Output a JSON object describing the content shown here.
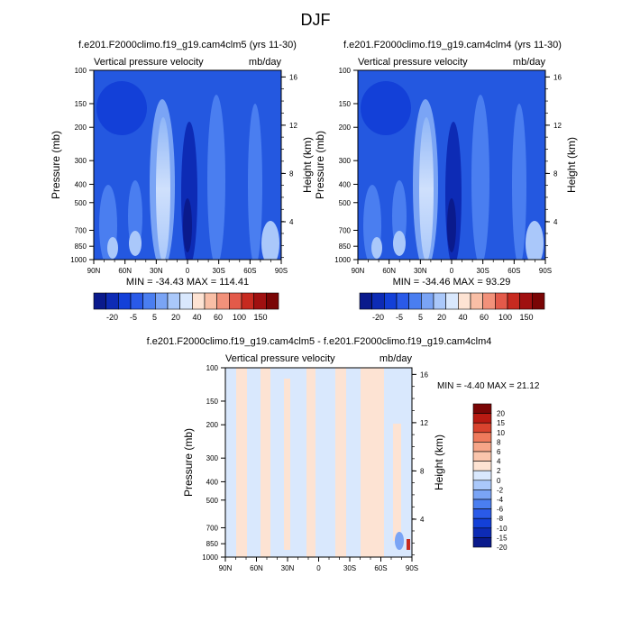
{
  "page_title": "DJF",
  "chart_data": [
    {
      "type": "heatmap",
      "title": "f.e201.F2000climo.f19_g19.cam4clm5 (yrs 11-30)",
      "left_string": "Vertical pressure velocity",
      "right_string": "mb/day",
      "ylabel": "Pressure (mb)",
      "ylabel_right": "Height (km)",
      "xticks": [
        "90N",
        "60N",
        "30N",
        "0",
        "30S",
        "60S",
        "90S"
      ],
      "yticks": [
        "100",
        "150",
        "200",
        "300",
        "400",
        "500",
        "700",
        "850",
        "1000"
      ],
      "yticks_right": [
        "16",
        "12",
        "8",
        "4"
      ],
      "stats": "MIN = -34.43  MAX = 114.41",
      "colorbar_labels": [
        "-20",
        "-5",
        "5",
        "20",
        "40",
        "60",
        "100",
        "150"
      ]
    },
    {
      "type": "heatmap",
      "title": "f.e201.F2000climo.f19_g19.cam4clm4 (yrs 11-30)",
      "left_string": "Vertical pressure velocity",
      "right_string": "mb/day",
      "ylabel": "Pressure (mb)",
      "ylabel_right": "Height (km)",
      "xticks": [
        "90N",
        "60N",
        "30N",
        "0",
        "30S",
        "60S",
        "90S"
      ],
      "yticks": [
        "100",
        "150",
        "200",
        "300",
        "400",
        "500",
        "700",
        "850",
        "1000"
      ],
      "yticks_right": [
        "16",
        "12",
        "8",
        "4"
      ],
      "stats": "MIN = -34.46  MAX =  93.29",
      "colorbar_labels": [
        "-20",
        "-5",
        "5",
        "20",
        "40",
        "60",
        "100",
        "150"
      ]
    },
    {
      "type": "heatmap",
      "title": "f.e201.F2000climo.f19_g19.cam4clm5 - f.e201.F2000climo.f19_g19.cam4clm4",
      "left_string": "Vertical pressure velocity",
      "right_string": "mb/day",
      "ylabel": "Pressure (mb)",
      "ylabel_right": "Height (km)",
      "xticks": [
        "90N",
        "60N",
        "30N",
        "0",
        "30S",
        "60S",
        "90S"
      ],
      "yticks": [
        "100",
        "150",
        "200",
        "300",
        "400",
        "500",
        "700",
        "850",
        "1000"
      ],
      "yticks_right": [
        "16",
        "12",
        "8",
        "4"
      ],
      "stats": "MIN =  -4.40  MAX =  21.12",
      "colorbar_labels": [
        "20",
        "15",
        "10",
        "8",
        "6",
        "4",
        "2",
        "0",
        "-2",
        "-4",
        "-6",
        "-8",
        "-10",
        "-15",
        "-20"
      ]
    }
  ],
  "colors": {
    "cb_main": [
      "#0a1a8c",
      "#0d2bb5",
      "#1340d8",
      "#2a5ae8",
      "#4a7ef0",
      "#7aa4f5",
      "#aac8fa",
      "#d9e8fd",
      "#fde3d3",
      "#f9bfa6",
      "#f2917a",
      "#e35a4a",
      "#c72a20",
      "#a01010",
      "#7a0505"
    ],
    "cb_diff": [
      "#7a0505",
      "#b81a12",
      "#d9432e",
      "#ef7a5c",
      "#f6a588",
      "#fac5ac",
      "#fde3d3",
      "#d9e8fd",
      "#aac8fa",
      "#7aa4f5",
      "#4a7ef0",
      "#2a5ae8",
      "#1340d8",
      "#0d2bb5",
      "#0a1a8c"
    ],
    "field_base": "#2458e0",
    "diff_neg": "#d9e8fd",
    "diff_pos": "#fde3d3"
  }
}
